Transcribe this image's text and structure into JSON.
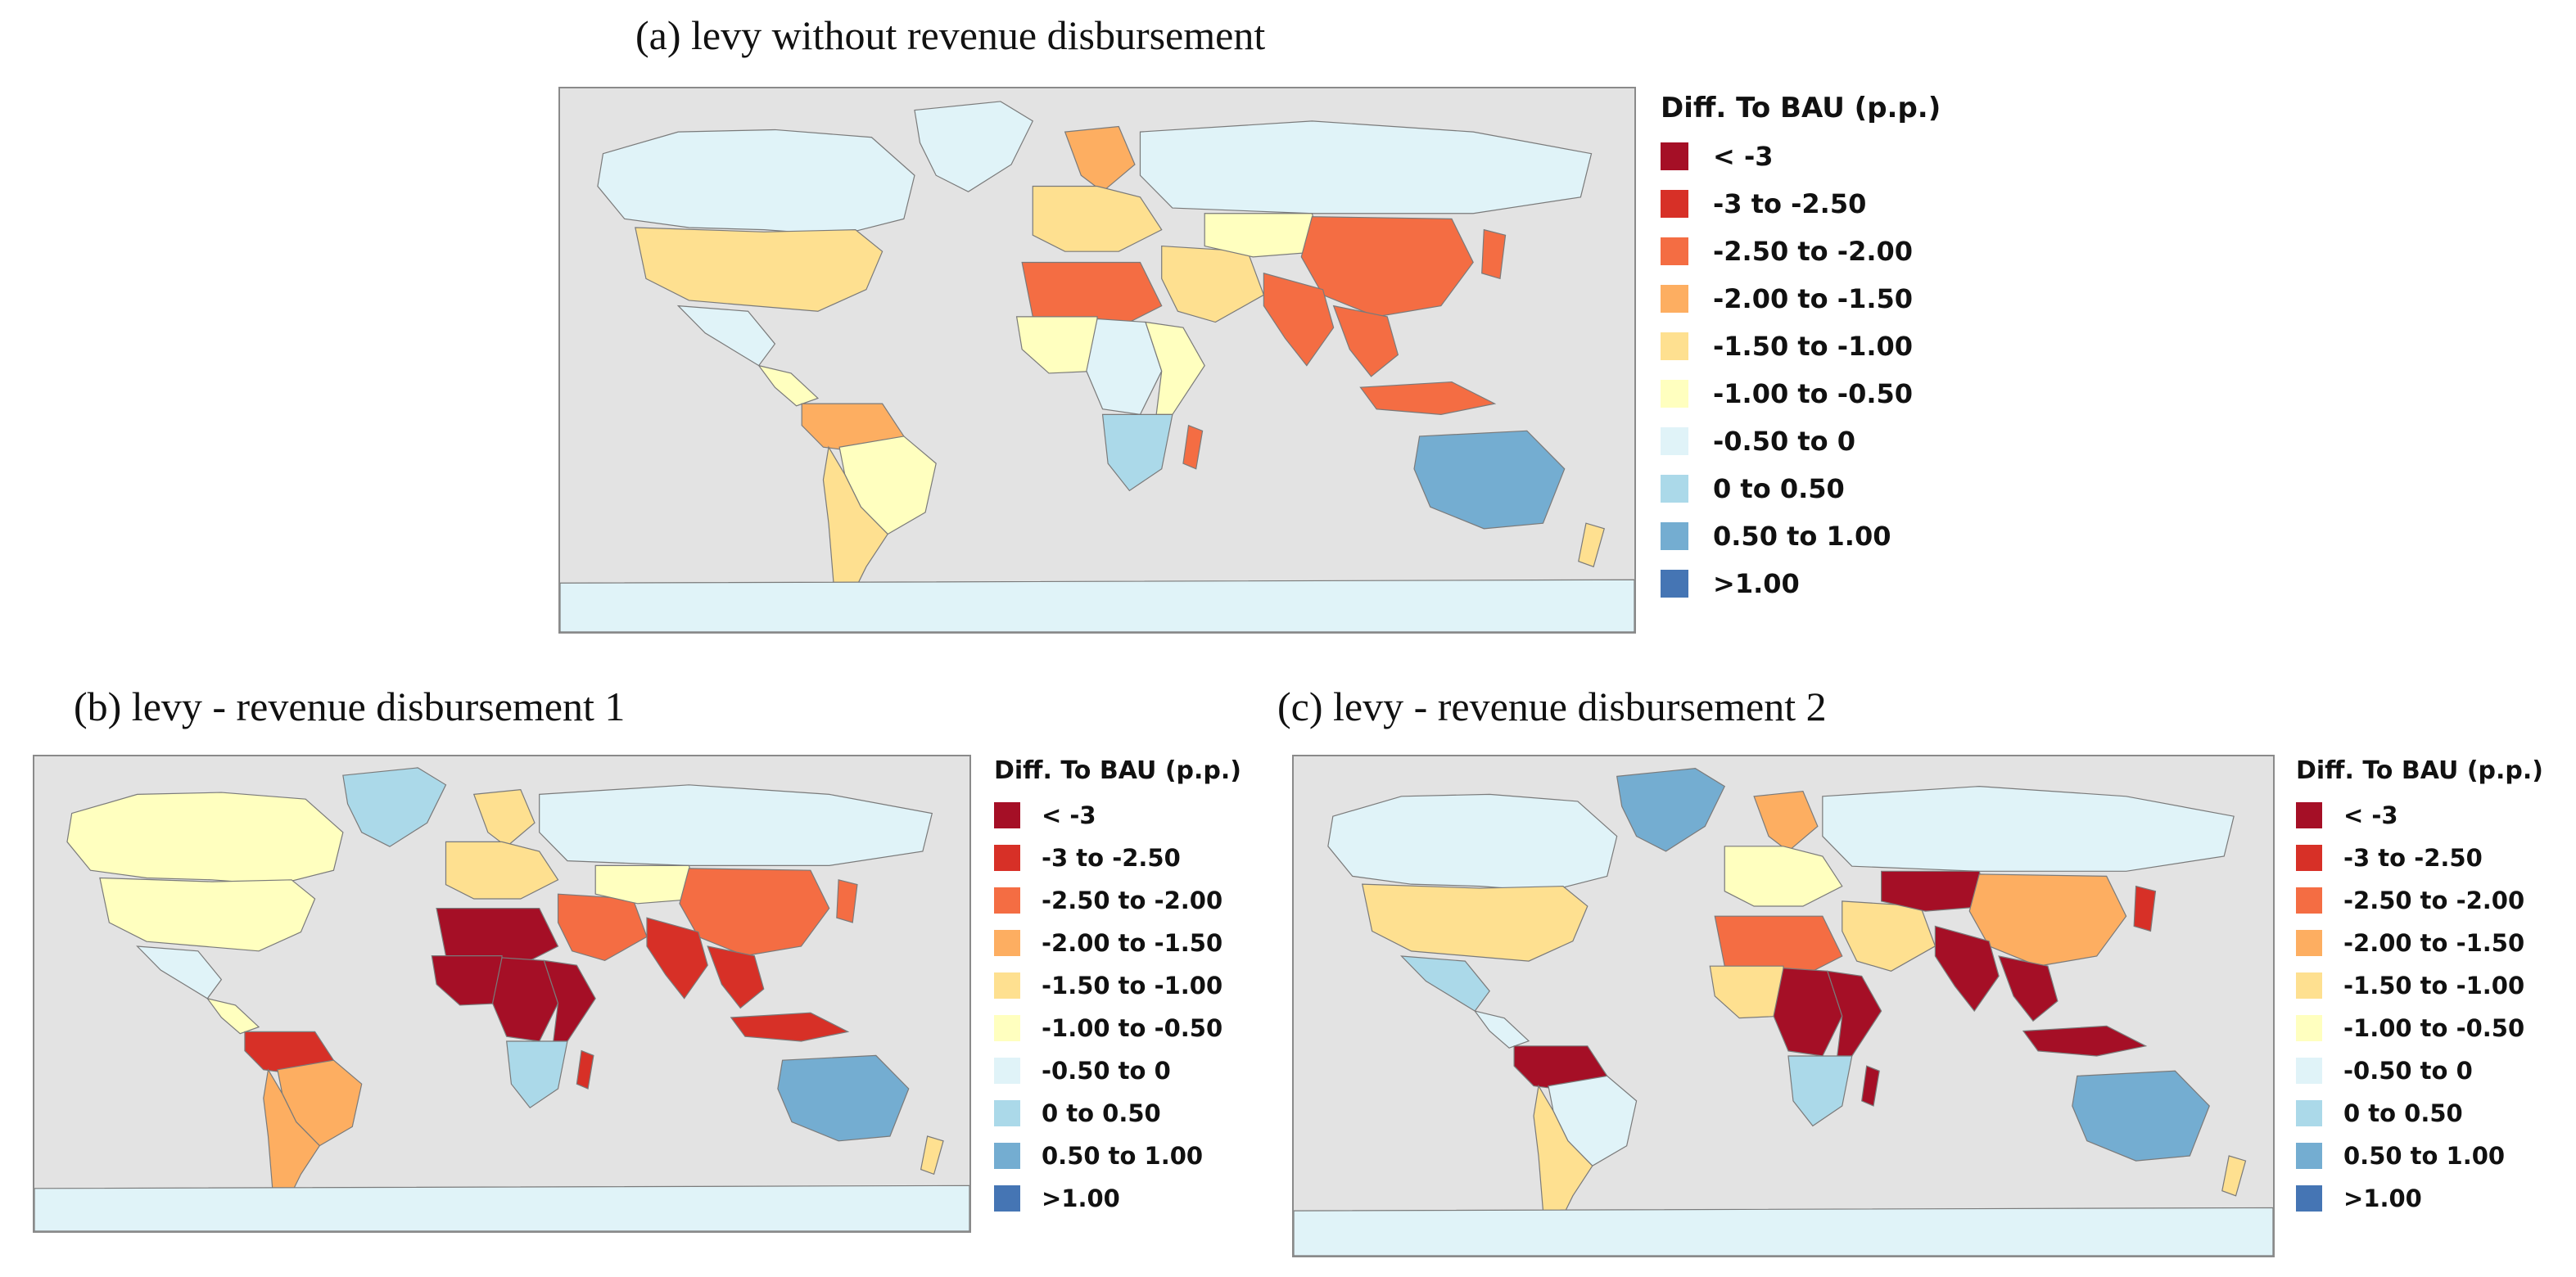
{
  "legend": {
    "title": "Diff. To BAU (p.p.)",
    "items": [
      {
        "label": "< -3",
        "color": "#a50f26"
      },
      {
        "label": "-3 to -2.50",
        "color": "#d73027"
      },
      {
        "label": "-2.50 to -2.00",
        "color": "#f46d43"
      },
      {
        "label": "-2.00 to -1.50",
        "color": "#fdae61"
      },
      {
        "label": "-1.50 to -1.00",
        "color": "#fee090"
      },
      {
        "label": "-1.00 to -0.50",
        "color": "#ffffbf"
      },
      {
        "label": "-0.50 to 0",
        "color": "#e0f3f8"
      },
      {
        "label": "0 to 0.50",
        "color": "#abd9e9"
      },
      {
        "label": "0.50 to 1.00",
        "color": "#74add1"
      },
      {
        "label": ">1.00",
        "color": "#4575b4"
      }
    ]
  },
  "panels": [
    {
      "id": "a",
      "title": "(a)    levy without revenue disbursement",
      "regions": {
        "canada": 6,
        "usa": 4,
        "mexico": 6,
        "central_america": 5,
        "south_america_north": 3,
        "brazil": 5,
        "argentina": 4,
        "greenland": 6,
        "europe": 4,
        "scandinavia": 3,
        "russia": 6,
        "north_africa": 2,
        "west_africa": 5,
        "central_africa": 6,
        "east_africa": 5,
        "southern_africa": 7,
        "madagascar": 2,
        "middle_east": 4,
        "central_asia": 5,
        "china": 2,
        "india": 2,
        "southeast_asia": 2,
        "indonesia": 2,
        "japan": 2,
        "australia": 8,
        "new_zealand": 4,
        "antarctica": 6
      }
    },
    {
      "id": "b",
      "title": "(b)  levy - revenue disbursement 1",
      "regions": {
        "canada": 5,
        "usa": 5,
        "mexico": 6,
        "central_america": 5,
        "south_america_north": 1,
        "brazil": 3,
        "argentina": 3,
        "greenland": 7,
        "europe": 4,
        "scandinavia": 4,
        "russia": 6,
        "north_africa": 0,
        "west_africa": 0,
        "central_africa": 0,
        "east_africa": 0,
        "southern_africa": 7,
        "madagascar": 1,
        "middle_east": 2,
        "central_asia": 5,
        "china": 2,
        "india": 1,
        "southeast_asia": 1,
        "indonesia": 1,
        "japan": 2,
        "australia": 8,
        "new_zealand": 4,
        "antarctica": 6
      }
    },
    {
      "id": "c",
      "title": "(c) levy - revenue disbursement 2",
      "regions": {
        "canada": 6,
        "usa": 4,
        "mexico": 7,
        "central_america": 6,
        "south_america_north": 0,
        "brazil": 6,
        "argentina": 4,
        "greenland": 8,
        "europe": 5,
        "scandinavia": 3,
        "russia": 6,
        "north_africa": 2,
        "west_africa": 4,
        "central_africa": 0,
        "east_africa": 0,
        "southern_africa": 7,
        "madagascar": 0,
        "middle_east": 4,
        "central_asia": 0,
        "china": 3,
        "india": 0,
        "southeast_asia": 0,
        "indonesia": 0,
        "japan": 1,
        "australia": 8,
        "new_zealand": 4,
        "antarctica": 6
      }
    }
  ]
}
